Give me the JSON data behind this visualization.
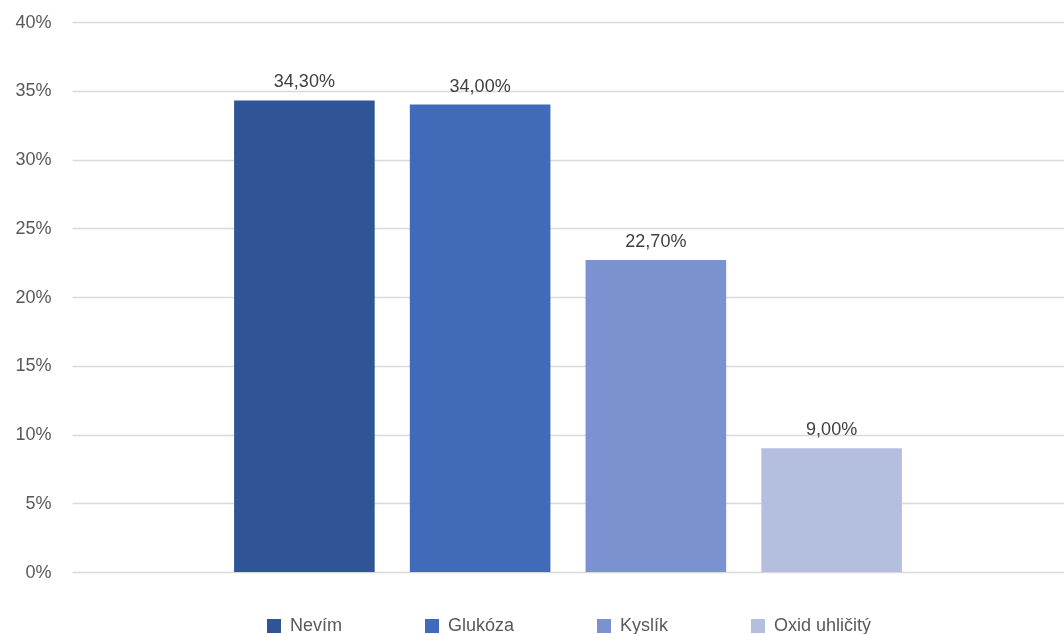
{
  "chart_data": {
    "type": "bar",
    "categories": [
      null
    ],
    "series": [
      {
        "name": "Nevím",
        "color": "#2f5597",
        "values": [
          34.3
        ],
        "value_labels": [
          "34,30%"
        ]
      },
      {
        "name": "Glukóza",
        "color": "#3f6bb8",
        "values": [
          34.0
        ],
        "value_labels": [
          "34,00%"
        ]
      },
      {
        "name": "Kyslík",
        "color": "#7a92cf",
        "values": [
          22.7
        ],
        "value_labels": [
          "22,70%"
        ]
      },
      {
        "name": "Oxid uhličitý",
        "color": "#b4bfdf",
        "values": [
          9.0
        ],
        "value_labels": [
          "9,00%"
        ]
      }
    ],
    "ylim": [
      0,
      40
    ],
    "yticks": [
      {
        "value": 0,
        "label": "0%"
      },
      {
        "value": 5,
        "label": "5%"
      },
      {
        "value": 10,
        "label": "10%"
      },
      {
        "value": 15,
        "label": "15%"
      },
      {
        "value": 20,
        "label": "20%"
      },
      {
        "value": 25,
        "label": "25%"
      },
      {
        "value": 30,
        "label": "30%"
      },
      {
        "value": 35,
        "label": "35%"
      },
      {
        "value": 40,
        "label": "40%"
      }
    ],
    "grid": "y",
    "legend": "bottom"
  }
}
